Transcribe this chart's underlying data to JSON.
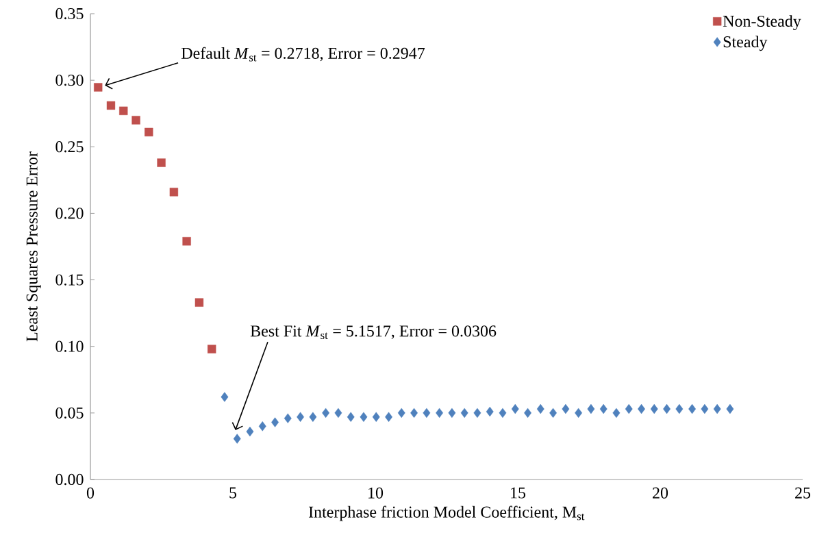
{
  "chart_data": {
    "type": "scatter",
    "xlabel": "Interphase friction Model Coefficient, M$_{st}$",
    "ylabel": "Least Squares Pressure Error",
    "xlim": [
      0,
      25
    ],
    "xticks": [
      0,
      5,
      10,
      15,
      20,
      25
    ],
    "ylim": [
      0,
      0.35
    ],
    "yticks": [
      {
        "value": 0,
        "label": "0.00"
      },
      {
        "value": 0.05,
        "label": "0.05"
      },
      {
        "value": 0.1,
        "label": "0.10"
      },
      {
        "value": 0.15,
        "label": "0.15"
      },
      {
        "value": 0.2,
        "label": "0.20"
      },
      {
        "value": 0.25,
        "label": "0.25"
      },
      {
        "value": 0.3,
        "label": "0.30"
      },
      {
        "value": 0.35,
        "label": "0.35"
      }
    ],
    "legend": "top right",
    "grid": false,
    "annotations": [
      "Default *M*$_{st}$ = 0.2718, Error = 0.2947",
      "Best Fit *M*$_{st}$ = 5.1517, Error = 0.0306"
    ],
    "series": [
      {
        "name": "Non-Steady",
        "color": "#c0504d",
        "marker": "square",
        "x": [
          0.27,
          0.72,
          1.16,
          1.6,
          2.05,
          2.49,
          2.93,
          3.38,
          3.82,
          4.26
        ],
        "values": [
          0.2947,
          0.281,
          0.277,
          0.27,
          0.261,
          0.238,
          0.216,
          0.179,
          0.133,
          0.098
        ]
      },
      {
        "name": "Steady",
        "color": "#4f81bd",
        "marker": "diamond",
        "x": [
          4.71,
          5.15,
          5.6,
          6.04,
          6.48,
          6.93,
          7.37,
          7.81,
          8.26,
          8.7,
          9.14,
          9.59,
          10.03,
          10.47,
          10.92,
          11.36,
          11.8,
          12.25,
          12.69,
          13.13,
          13.58,
          14.02,
          14.47,
          14.91,
          15.35,
          15.8,
          16.24,
          16.68,
          17.13,
          17.57,
          18.01,
          18.46,
          18.9,
          19.34,
          19.79,
          20.23,
          20.67,
          21.12,
          21.56,
          22.0,
          22.45
        ],
        "values": [
          0.062,
          0.0306,
          0.036,
          0.04,
          0.043,
          0.046,
          0.047,
          0.047,
          0.05,
          0.05,
          0.047,
          0.047,
          0.047,
          0.047,
          0.05,
          0.05,
          0.05,
          0.05,
          0.05,
          0.05,
          0.05,
          0.051,
          0.05,
          0.053,
          0.05,
          0.053,
          0.05,
          0.053,
          0.05,
          0.053,
          0.053,
          0.05,
          0.053,
          0.053,
          0.053,
          0.053,
          0.053,
          0.053,
          0.053,
          0.053,
          0.053
        ]
      }
    ]
  }
}
